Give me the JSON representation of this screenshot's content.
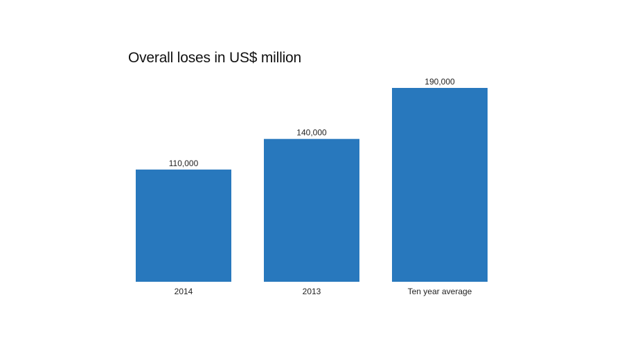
{
  "chart_data": {
    "type": "bar",
    "title": "Overall loses in US$ million",
    "categories": [
      "2014",
      "2013",
      "Ten year average"
    ],
    "values": [
      110000,
      140000,
      190000
    ],
    "value_labels": [
      "110,000",
      "140,000",
      "190,000"
    ],
    "xlabel": "",
    "ylabel": "",
    "ylim": [
      0,
      190000
    ],
    "grid": false,
    "legend": "none",
    "bar_color": "#2878bd"
  }
}
